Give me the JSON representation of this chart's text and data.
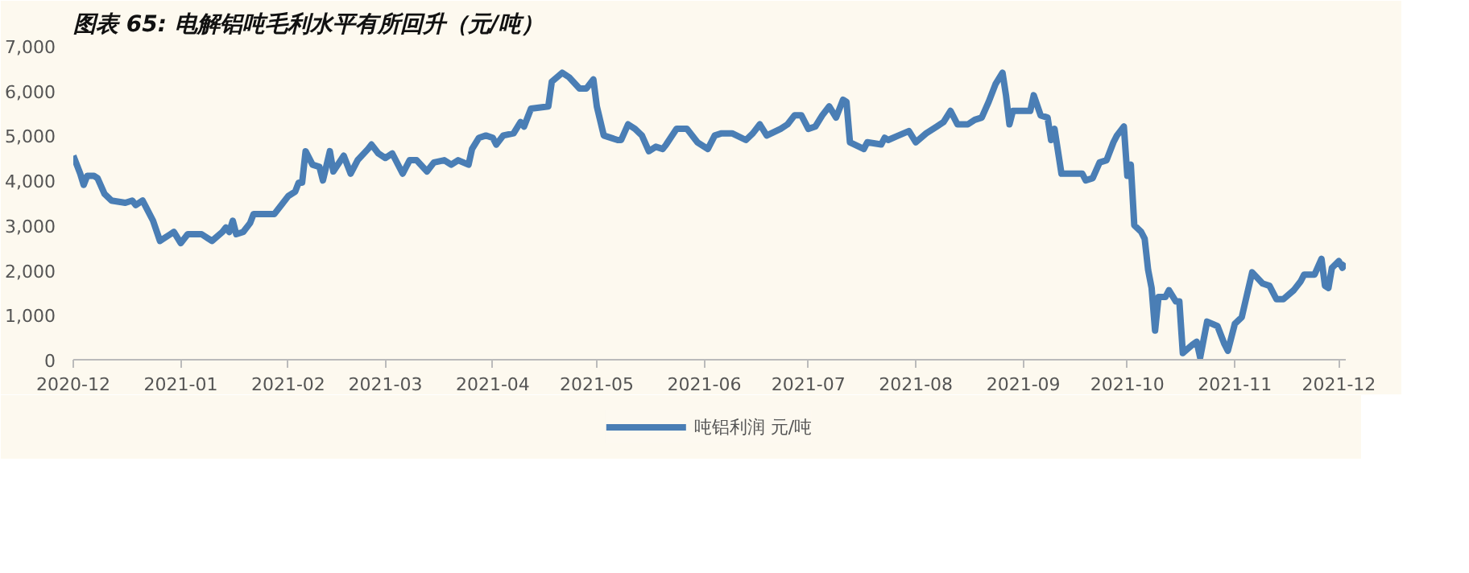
{
  "chart_data": {
    "type": "line",
    "title": "图表 65: 电解铝吨毛利水平有所回升（元/吨）",
    "x": [
      "2020-12-01",
      "2020-12-03",
      "2020-12-04",
      "2020-12-05",
      "2020-12-07",
      "2020-12-08",
      "2020-12-10",
      "2020-12-12",
      "2020-12-16",
      "2020-12-18",
      "2020-12-19",
      "2020-12-21",
      "2020-12-22",
      "2020-12-24",
      "2020-12-26",
      "2020-12-29",
      "2020-12-30",
      "2021-01-01",
      "2021-01-03",
      "2021-01-07",
      "2021-01-10",
      "2021-01-13",
      "2021-01-14",
      "2021-01-15",
      "2021-01-16",
      "2021-01-17",
      "2021-01-19",
      "2021-01-21",
      "2021-01-22",
      "2021-01-28",
      "2021-02-01",
      "2021-02-03",
      "2021-02-04",
      "2021-02-05",
      "2021-02-06",
      "2021-02-08",
      "2021-02-10",
      "2021-02-11",
      "2021-02-13",
      "2021-02-14",
      "2021-02-17",
      "2021-02-19",
      "2021-02-21",
      "2021-02-24",
      "2021-02-25",
      "2021-02-27",
      "2021-03-01",
      "2021-03-03",
      "2021-03-06",
      "2021-03-08",
      "2021-03-10",
      "2021-03-13",
      "2021-03-15",
      "2021-03-18",
      "2021-03-20",
      "2021-03-22",
      "2021-03-25",
      "2021-03-26",
      "2021-03-28",
      "2021-03-30",
      "2021-04-01",
      "2021-04-02",
      "2021-04-04",
      "2021-04-07",
      "2021-04-09",
      "2021-04-10",
      "2021-04-12",
      "2021-04-17",
      "2021-04-18",
      "2021-04-21",
      "2021-04-23",
      "2021-04-26",
      "2021-04-28",
      "2021-04-30",
      "2021-05-01",
      "2021-05-03",
      "2021-05-07",
      "2021-05-08",
      "2021-05-10",
      "2021-05-12",
      "2021-05-14",
      "2021-05-16",
      "2021-05-18",
      "2021-05-20",
      "2021-05-21",
      "2021-05-24",
      "2021-05-27",
      "2021-05-30",
      "2021-06-01",
      "2021-06-02",
      "2021-06-04",
      "2021-06-06",
      "2021-06-09",
      "2021-06-13",
      "2021-06-15",
      "2021-06-17",
      "2021-06-19",
      "2021-06-23",
      "2021-06-25",
      "2021-06-27",
      "2021-06-29",
      "2021-07-01",
      "2021-07-03",
      "2021-07-05",
      "2021-07-07",
      "2021-07-09",
      "2021-07-11",
      "2021-07-12",
      "2021-07-13",
      "2021-07-17",
      "2021-07-18",
      "2021-07-22",
      "2021-07-23",
      "2021-07-24",
      "2021-07-27",
      "2021-07-30",
      "2021-08-01",
      "2021-08-04",
      "2021-08-07",
      "2021-08-09",
      "2021-08-11",
      "2021-08-13",
      "2021-08-16",
      "2021-08-18",
      "2021-08-20",
      "2021-08-22",
      "2021-08-24",
      "2021-08-26",
      "2021-08-27",
      "2021-08-28",
      "2021-08-29",
      "2021-09-03",
      "2021-09-04",
      "2021-09-06",
      "2021-09-08",
      "2021-09-09",
      "2021-09-10",
      "2021-09-12",
      "2021-09-18",
      "2021-09-19",
      "2021-09-21",
      "2021-09-23",
      "2021-09-25",
      "2021-09-27",
      "2021-09-28",
      "2021-09-30",
      "2021-10-01",
      "2021-10-02",
      "2021-10-03",
      "2021-10-05",
      "2021-10-06",
      "2021-10-07",
      "2021-10-08",
      "2021-10-09",
      "2021-10-10",
      "2021-10-12",
      "2021-10-13",
      "2021-10-15",
      "2021-10-16",
      "2021-10-17",
      "2021-10-20",
      "2021-10-21",
      "2021-10-22",
      "2021-10-24",
      "2021-10-27",
      "2021-10-29",
      "2021-10-30",
      "2021-11-01",
      "2021-11-03",
      "2021-11-06",
      "2021-11-09",
      "2021-11-11",
      "2021-11-13",
      "2021-11-15",
      "2021-11-18",
      "2021-11-20",
      "2021-11-21",
      "2021-11-24",
      "2021-11-26",
      "2021-11-27",
      "2021-11-28",
      "2021-11-29",
      "2021-12-01",
      "2021-12-02",
      "2021-12-03"
    ],
    "series": [
      {
        "name": "吨铝利润 元/吨",
        "color": "#4a7eb5",
        "values": [
          4550,
          4150,
          3900,
          4100,
          4100,
          4050,
          3700,
          3550,
          3500,
          3550,
          3450,
          3550,
          3400,
          3100,
          2650,
          2800,
          2850,
          2600,
          2800,
          2800,
          2650,
          2850,
          2950,
          2850,
          3100,
          2800,
          2850,
          3050,
          3250,
          3250,
          3650,
          3750,
          3950,
          3950,
          4650,
          4350,
          4300,
          4000,
          4650,
          4200,
          4550,
          4150,
          4450,
          4700,
          4800,
          4600,
          4500,
          4600,
          4150,
          4450,
          4450,
          4200,
          4400,
          4450,
          4350,
          4450,
          4350,
          4700,
          4950,
          5000,
          4950,
          4800,
          5000,
          5050,
          5300,
          5200,
          5600,
          5650,
          6200,
          6400,
          6300,
          6050,
          6050,
          6250,
          5650,
          5000,
          4900,
          4900,
          5250,
          5150,
          5000,
          4650,
          4750,
          4700,
          4800,
          5150,
          5150,
          4850,
          4750,
          4700,
          5000,
          5050,
          5050,
          4900,
          5050,
          5250,
          5000,
          5150,
          5250,
          5450,
          5450,
          5150,
          5200,
          5450,
          5650,
          5400,
          5800,
          5750,
          4850,
          4700,
          4850,
          4800,
          4950,
          4900,
          5000,
          5100,
          4850,
          5050,
          5200,
          5300,
          5550,
          5250,
          5250,
          5350,
          5400,
          5750,
          6150,
          6400,
          5900,
          5250,
          5550,
          5550,
          5900,
          5450,
          5400,
          4900,
          5150,
          4150,
          4150,
          4000,
          4050,
          4400,
          4450,
          4850,
          5000,
          5200,
          4100,
          4350,
          3000,
          2850,
          2700,
          2000,
          1600,
          650,
          1400,
          1400,
          1550,
          1300,
          1300,
          150,
          350,
          400,
          50,
          850,
          750,
          350,
          200,
          800,
          950,
          1950,
          1700,
          1650,
          1350,
          1350,
          1550,
          1750,
          1900,
          1900,
          2250,
          1650,
          1600,
          2050,
          2200,
          2050,
          2150
        ]
      }
    ],
    "xlim": [
      "2020-12-01",
      "2021-12-03"
    ],
    "xticks": [
      {
        "value": "2020-12-01",
        "label": "2020-12"
      },
      {
        "value": "2021-01-01",
        "label": "2021-01"
      },
      {
        "value": "2021-02-01",
        "label": "2021-02"
      },
      {
        "value": "2021-03-01",
        "label": "2021-03"
      },
      {
        "value": "2021-04-01",
        "label": "2021-04"
      },
      {
        "value": "2021-05-01",
        "label": "2021-05"
      },
      {
        "value": "2021-06-01",
        "label": "2021-06"
      },
      {
        "value": "2021-07-01",
        "label": "2021-07"
      },
      {
        "value": "2021-08-01",
        "label": "2021-08"
      },
      {
        "value": "2021-09-01",
        "label": "2021-09"
      },
      {
        "value": "2021-10-01",
        "label": "2021-10"
      },
      {
        "value": "2021-11-01",
        "label": "2021-11"
      },
      {
        "value": "2021-12-01",
        "label": "2021-12"
      }
    ],
    "ylim": [
      0,
      7000
    ],
    "yticks": [
      0,
      {
        "value": 1000,
        "label": "1,000"
      },
      {
        "value": 2000,
        "label": "2,000"
      },
      {
        "value": 3000,
        "label": "3,000"
      },
      {
        "value": 4000,
        "label": "4,000"
      },
      {
        "value": 5000,
        "label": "5,000"
      },
      {
        "value": 6000,
        "label": "6,000"
      },
      {
        "value": 7000,
        "label": "7,000"
      }
    ],
    "grid": false,
    "legend": "bottom",
    "marker": "none",
    "line_style": "solid"
  }
}
